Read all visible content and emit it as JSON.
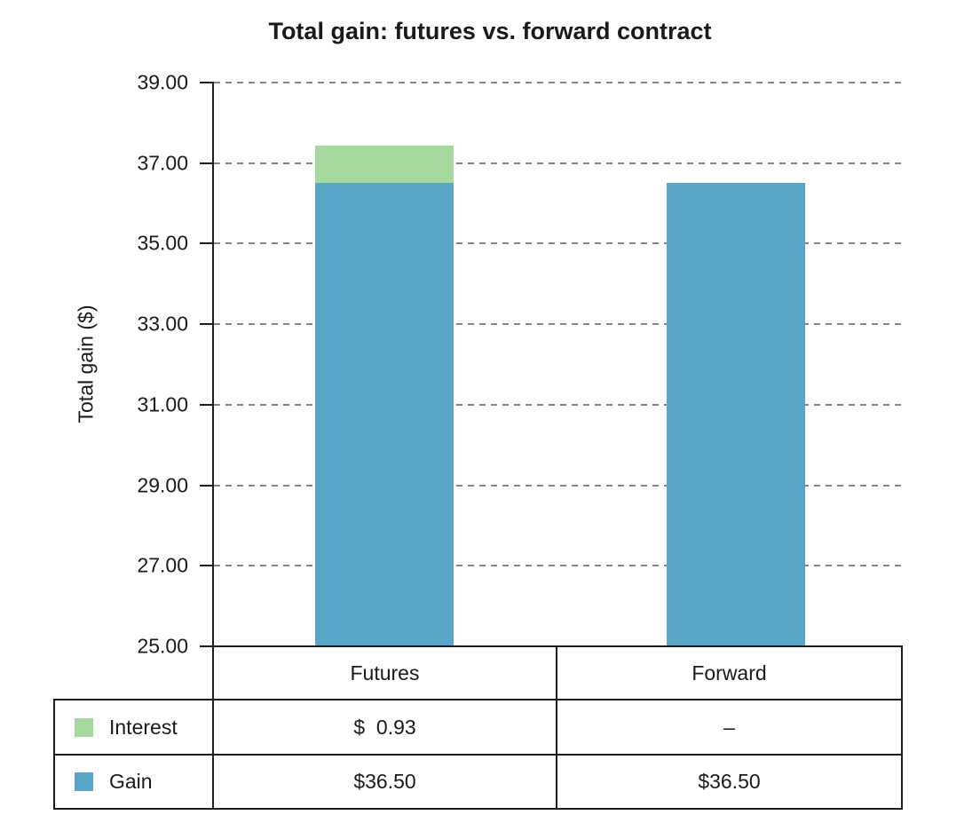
{
  "chart_data": {
    "type": "bar",
    "stacked": true,
    "title": "Total gain: futures vs. forward contract",
    "ylabel": "Total gain ($)",
    "ylim": [
      25.0,
      39.0
    ],
    "ytick_step": 2.0,
    "ytick_labels": [
      "25.00",
      "27.00",
      "29.00",
      "31.00",
      "33.00",
      "35.00",
      "37.00",
      "39.00"
    ],
    "grid": "dashed-horizontal",
    "categories": [
      "Futures",
      "Forward"
    ],
    "series": [
      {
        "name": "Gain",
        "color": "#58a5c8",
        "values": [
          36.5,
          36.5
        ]
      },
      {
        "name": "Interest",
        "color": "#a5d99d",
        "values": [
          0.93,
          0
        ]
      }
    ],
    "totals": [
      37.43,
      36.5
    ],
    "legend_position": "table-left",
    "data_table": {
      "column_headers": [
        "Futures",
        "Forward"
      ],
      "rows": [
        {
          "label": "Interest",
          "swatch_color": "#a5d99d",
          "cells": [
            "$  0.93",
            "–"
          ]
        },
        {
          "label": "Gain",
          "swatch_color": "#58a5c8",
          "cells": [
            "$36.50",
            "$36.50"
          ]
        }
      ]
    }
  }
}
